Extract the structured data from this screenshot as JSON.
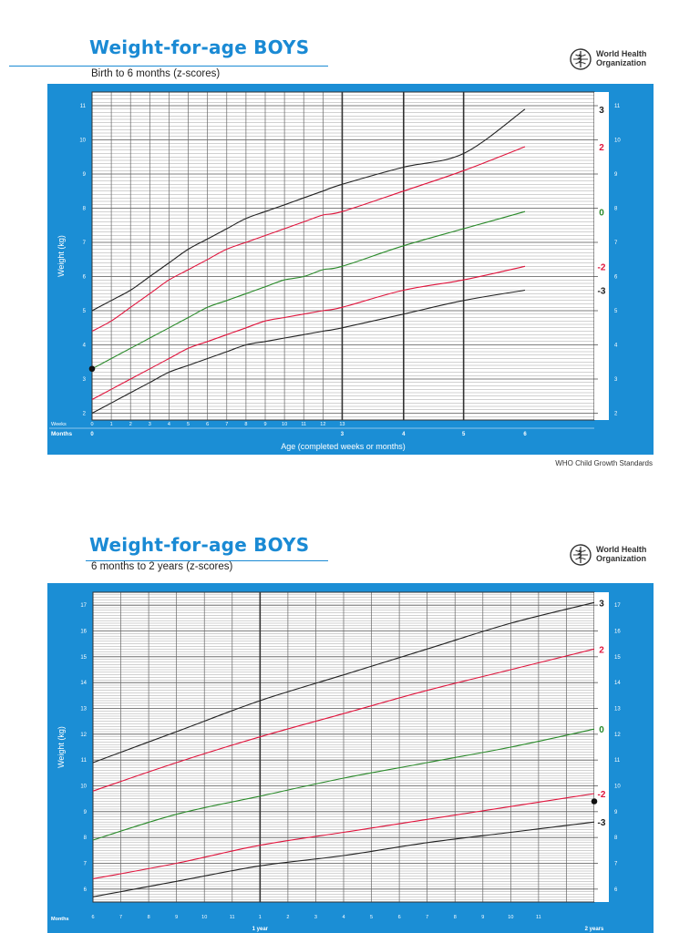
{
  "organization": {
    "name_line1": "World Health",
    "name_line2": "Organization",
    "emblem_icon": "who-emblem-icon"
  },
  "footer": {
    "source": "WHO Child Growth Standards"
  },
  "colors": {
    "brand_blue": "#1b8ed5",
    "title_blue": "#1a8ad4",
    "line_black": "#222222",
    "line_red": "#e0143c",
    "line_green": "#2a8a2a"
  },
  "chart_data": [
    {
      "type": "line",
      "title": "Weight-for-age BOYS",
      "subtitle": "Birth to 6 months (z-scores)",
      "ylabel": "Weight (kg)",
      "xlabel": "Age (completed weeks or months)",
      "ylim": [
        1.8,
        11.4
      ],
      "yticks": [
        2,
        3,
        4,
        5,
        6,
        7,
        8,
        9,
        10,
        11
      ],
      "week_ticks": [
        "0",
        "1",
        "2",
        "3",
        "4",
        "5",
        "6",
        "7",
        "8",
        "9",
        "10",
        "11",
        "12",
        "13"
      ],
      "month_ticks": [
        "0",
        "3",
        "4",
        "5",
        "6"
      ],
      "row_labels": {
        "weeks": "Weeks",
        "months": "Months"
      },
      "x_unit": "weeks",
      "x": [
        0,
        1,
        2,
        3,
        4,
        5,
        6,
        7,
        8,
        9,
        10,
        11,
        12,
        13,
        17.4,
        21.7,
        26.1
      ],
      "series": [
        {
          "name": "3",
          "color_key": "line_black",
          "values": [
            5.0,
            5.3,
            5.6,
            6.0,
            6.4,
            6.8,
            7.1,
            7.4,
            7.7,
            7.9,
            8.1,
            8.3,
            8.5,
            8.7,
            9.2,
            9.6,
            10.9
          ]
        },
        {
          "name": "2",
          "color_key": "line_red",
          "values": [
            4.4,
            4.7,
            5.1,
            5.5,
            5.9,
            6.2,
            6.5,
            6.8,
            7.0,
            7.2,
            7.4,
            7.6,
            7.8,
            7.9,
            8.5,
            9.1,
            9.8
          ]
        },
        {
          "name": "0",
          "color_key": "line_green",
          "values": [
            3.3,
            3.6,
            3.9,
            4.2,
            4.5,
            4.8,
            5.1,
            5.3,
            5.5,
            5.7,
            5.9,
            6.0,
            6.2,
            6.3,
            6.9,
            7.4,
            7.9
          ]
        },
        {
          "name": "-2",
          "color_key": "line_red",
          "values": [
            2.4,
            2.7,
            3.0,
            3.3,
            3.6,
            3.9,
            4.1,
            4.3,
            4.5,
            4.7,
            4.8,
            4.9,
            5.0,
            5.1,
            5.6,
            5.9,
            6.3
          ]
        },
        {
          "name": "-3",
          "color_key": "line_black",
          "values": [
            2.0,
            2.3,
            2.6,
            2.9,
            3.2,
            3.4,
            3.6,
            3.8,
            4.0,
            4.1,
            4.2,
            4.3,
            4.4,
            4.5,
            4.9,
            5.3,
            5.6
          ]
        }
      ],
      "points": [
        {
          "x": 0,
          "y": 3.3
        }
      ]
    },
    {
      "type": "line",
      "title": "Weight-for-age BOYS",
      "subtitle": "6 months to 2 years (z-scores)",
      "ylabel": "Weight (kg)",
      "xlabel": "",
      "ylim": [
        5.5,
        17.5
      ],
      "yticks": [
        6,
        7,
        8,
        9,
        10,
        11,
        12,
        13,
        14,
        15,
        16,
        17
      ],
      "x_unit": "months",
      "x_ticks": [
        "6",
        "7",
        "8",
        "9",
        "10",
        "11",
        "1",
        "2",
        "3",
        "4",
        "5",
        "6",
        "7",
        "8",
        "9",
        "10",
        "11"
      ],
      "month_row_label": "Months",
      "year_labels": [
        "1 year",
        "2 years"
      ],
      "x": [
        6,
        9,
        12,
        15,
        18,
        21,
        24
      ],
      "series": [
        {
          "name": "3",
          "color_key": "line_black",
          "values": [
            10.9,
            12.1,
            13.3,
            14.3,
            15.3,
            16.3,
            17.1
          ]
        },
        {
          "name": "2",
          "color_key": "line_red",
          "values": [
            9.8,
            10.9,
            11.9,
            12.8,
            13.7,
            14.5,
            15.3
          ]
        },
        {
          "name": "0",
          "color_key": "line_green",
          "values": [
            7.9,
            8.9,
            9.6,
            10.3,
            10.9,
            11.5,
            12.2
          ]
        },
        {
          "name": "-2",
          "color_key": "line_red",
          "values": [
            6.4,
            7.0,
            7.7,
            8.2,
            8.7,
            9.2,
            9.7
          ]
        },
        {
          "name": "-3",
          "color_key": "line_black",
          "values": [
            5.7,
            6.3,
            6.9,
            7.3,
            7.8,
            8.2,
            8.6
          ]
        }
      ],
      "points": [
        {
          "x": 24,
          "y": 9.4
        }
      ]
    }
  ]
}
